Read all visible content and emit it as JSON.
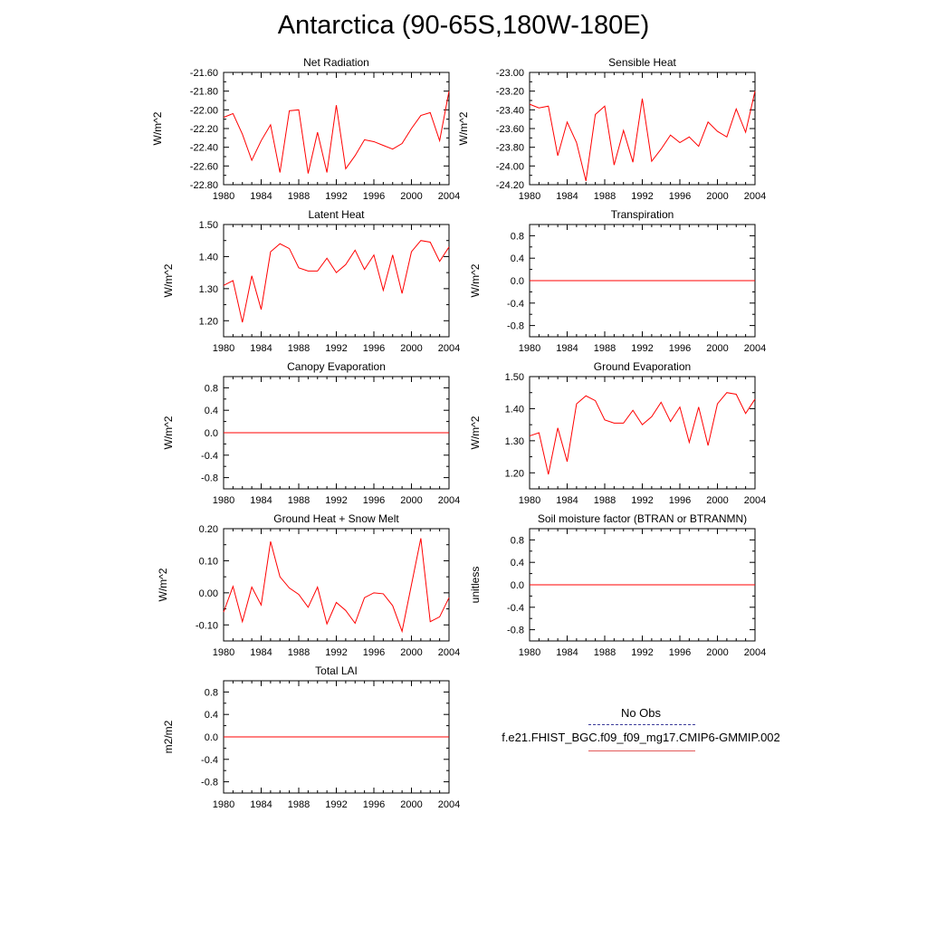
{
  "title": "Antarctica (90-65S,180W-180E)",
  "legend": {
    "obs_label": "No Obs",
    "case_label": "f.e21.FHIST_BGC.f09_f09_mg17.CMIP6-GMMIP.002",
    "obs_color": "#3b3b9a",
    "case_color": "#e35a5a"
  },
  "colors": {
    "series": "#ff0000",
    "axis": "#000000"
  },
  "chart_data": [
    {
      "type": "line",
      "title": "Net Radiation",
      "ylabel": "W/m^2",
      "xlim": [
        1980,
        2004
      ],
      "ylim": [
        -22.8,
        -21.6
      ],
      "x_ticks": [
        1980,
        1984,
        1988,
        1992,
        1996,
        2000,
        2004
      ],
      "y_ticks": [
        -21.6,
        -21.8,
        -22.0,
        -22.2,
        -22.4,
        -22.6,
        -22.8
      ],
      "y_tick_labels": [
        "-21.60",
        "-21.80",
        "-22.00",
        "-22.20",
        "-22.40",
        "-22.60",
        "-22.80"
      ],
      "x": [
        1980,
        1981,
        1982,
        1983,
        1984,
        1985,
        1986,
        1987,
        1988,
        1989,
        1990,
        1991,
        1992,
        1993,
        1994,
        1995,
        1996,
        1997,
        1998,
        1999,
        2000,
        2001,
        2002,
        2003,
        2004
      ],
      "values": [
        -22.08,
        -22.04,
        -22.26,
        -22.54,
        -22.33,
        -22.16,
        -22.67,
        -22.01,
        -22.0,
        -22.68,
        -22.24,
        -22.67,
        -21.95,
        -22.63,
        -22.49,
        -22.32,
        -22.34,
        -22.38,
        -22.42,
        -22.36,
        -22.2,
        -22.06,
        -22.03,
        -22.33,
        -21.8
      ]
    },
    {
      "type": "line",
      "title": "Sensible Heat",
      "ylabel": "W/m^2",
      "xlim": [
        1980,
        2004
      ],
      "ylim": [
        -24.2,
        -23.0
      ],
      "x_ticks": [
        1980,
        1984,
        1988,
        1992,
        1996,
        2000,
        2004
      ],
      "y_ticks": [
        -23.0,
        -23.2,
        -23.4,
        -23.6,
        -23.8,
        -24.0,
        -24.2
      ],
      "y_tick_labels": [
        "-23.00",
        "-23.20",
        "-23.40",
        "-23.60",
        "-23.80",
        "-24.00",
        "-24.20"
      ],
      "x": [
        1980,
        1981,
        1982,
        1983,
        1984,
        1985,
        1986,
        1987,
        1988,
        1989,
        1990,
        1991,
        1992,
        1993,
        1994,
        1995,
        1996,
        1997,
        1998,
        1999,
        2000,
        2001,
        2002,
        2003,
        2004
      ],
      "values": [
        -23.34,
        -23.38,
        -23.36,
        -23.89,
        -23.53,
        -23.75,
        -24.16,
        -23.45,
        -23.36,
        -23.99,
        -23.62,
        -23.96,
        -23.28,
        -23.95,
        -23.82,
        -23.67,
        -23.75,
        -23.69,
        -23.79,
        -23.53,
        -23.63,
        -23.69,
        -23.39,
        -23.64,
        -23.2
      ]
    },
    {
      "type": "line",
      "title": "Latent Heat",
      "ylabel": "W/m^2",
      "xlim": [
        1980,
        2004
      ],
      "ylim": [
        1.15,
        1.5
      ],
      "x_ticks": [
        1980,
        1984,
        1988,
        1992,
        1996,
        2000,
        2004
      ],
      "y_ticks": [
        1.5,
        1.4,
        1.3,
        1.2
      ],
      "y_tick_labels": [
        "1.50",
        "1.40",
        "1.30",
        "1.20"
      ],
      "x": [
        1980,
        1981,
        1982,
        1983,
        1984,
        1985,
        1986,
        1987,
        1988,
        1989,
        1990,
        1991,
        1992,
        1993,
        1994,
        1995,
        1996,
        1997,
        1998,
        1999,
        2000,
        2001,
        2002,
        2003,
        2004
      ],
      "values": [
        1.31,
        1.325,
        1.195,
        1.34,
        1.235,
        1.415,
        1.44,
        1.425,
        1.365,
        1.355,
        1.355,
        1.395,
        1.35,
        1.375,
        1.42,
        1.36,
        1.405,
        1.295,
        1.405,
        1.285,
        1.415,
        1.45,
        1.445,
        1.385,
        1.43
      ]
    },
    {
      "type": "line",
      "title": "Transpiration",
      "ylabel": "W/m^2",
      "xlim": [
        1980,
        2004
      ],
      "ylim": [
        -1.0,
        1.0
      ],
      "x_ticks": [
        1980,
        1984,
        1988,
        1992,
        1996,
        2000,
        2004
      ],
      "y_ticks": [
        0.8,
        0.4,
        0.0,
        -0.4,
        -0.8
      ],
      "y_tick_labels": [
        "0.8",
        "0.4",
        "0.0",
        "-0.4",
        "-0.8"
      ],
      "x": [
        1980,
        2004
      ],
      "values": [
        0,
        0
      ]
    },
    {
      "type": "line",
      "title": "Canopy Evaporation",
      "ylabel": "W/m^2",
      "xlim": [
        1980,
        2004
      ],
      "ylim": [
        -1.0,
        1.0
      ],
      "x_ticks": [
        1980,
        1984,
        1988,
        1992,
        1996,
        2000,
        2004
      ],
      "y_ticks": [
        0.8,
        0.4,
        0.0,
        -0.4,
        -0.8
      ],
      "y_tick_labels": [
        "0.8",
        "0.4",
        "0.0",
        "-0.4",
        "-0.8"
      ],
      "x": [
        1980,
        2004
      ],
      "values": [
        0,
        0
      ]
    },
    {
      "type": "line",
      "title": "Ground Evaporation",
      "ylabel": "W/m^2",
      "xlim": [
        1980,
        2004
      ],
      "ylim": [
        1.15,
        1.5
      ],
      "x_ticks": [
        1980,
        1984,
        1988,
        1992,
        1996,
        2000,
        2004
      ],
      "y_ticks": [
        1.5,
        1.4,
        1.3,
        1.2
      ],
      "y_tick_labels": [
        "1.50",
        "1.40",
        "1.30",
        "1.20"
      ],
      "x": [
        1980,
        1981,
        1982,
        1983,
        1984,
        1985,
        1986,
        1987,
        1988,
        1989,
        1990,
        1991,
        1992,
        1993,
        1994,
        1995,
        1996,
        1997,
        1998,
        1999,
        2000,
        2001,
        2002,
        2003,
        2004
      ],
      "values": [
        1.315,
        1.325,
        1.195,
        1.34,
        1.235,
        1.415,
        1.44,
        1.425,
        1.365,
        1.355,
        1.355,
        1.395,
        1.35,
        1.375,
        1.42,
        1.36,
        1.405,
        1.295,
        1.405,
        1.285,
        1.415,
        1.45,
        1.445,
        1.385,
        1.43
      ]
    },
    {
      "type": "line",
      "title": "Ground Heat + Snow Melt",
      "ylabel": "W/m^2",
      "xlim": [
        1980,
        2004
      ],
      "ylim": [
        -0.15,
        0.2
      ],
      "x_ticks": [
        1980,
        1984,
        1988,
        1992,
        1996,
        2000,
        2004
      ],
      "y_ticks": [
        0.2,
        0.1,
        0.0,
        -0.1
      ],
      "y_tick_labels": [
        "0.20",
        "0.10",
        "0.00",
        "-0.10"
      ],
      "x": [
        1980,
        1981,
        1982,
        1983,
        1984,
        1985,
        1986,
        1987,
        1988,
        1989,
        1990,
        1991,
        1992,
        1993,
        1994,
        1995,
        1996,
        1997,
        1998,
        1999,
        2000,
        2001,
        2002,
        2003,
        2004
      ],
      "values": [
        -0.06,
        0.02,
        -0.09,
        0.018,
        -0.038,
        0.16,
        0.05,
        0.015,
        -0.005,
        -0.045,
        0.018,
        -0.097,
        -0.03,
        -0.055,
        -0.095,
        -0.015,
        0.0,
        -0.003,
        -0.04,
        -0.12,
        0.025,
        0.17,
        -0.09,
        -0.075,
        -0.015
      ]
    },
    {
      "type": "line",
      "title": "Soil moisture factor (BTRAN or BTRANMN)",
      "ylabel": "unitless",
      "xlim": [
        1980,
        2004
      ],
      "ylim": [
        -1.0,
        1.0
      ],
      "x_ticks": [
        1980,
        1984,
        1988,
        1992,
        1996,
        2000,
        2004
      ],
      "y_ticks": [
        0.8,
        0.4,
        0.0,
        -0.4,
        -0.8
      ],
      "y_tick_labels": [
        "0.8",
        "0.4",
        "0.0",
        "-0.4",
        "-0.8"
      ],
      "x": [
        1980,
        2004
      ],
      "values": [
        0,
        0
      ]
    },
    {
      "type": "line",
      "title": "Total LAI",
      "ylabel": "m2/m2",
      "xlim": [
        1980,
        2004
      ],
      "ylim": [
        -1.0,
        1.0
      ],
      "x_ticks": [
        1980,
        1984,
        1988,
        1992,
        1996,
        2000,
        2004
      ],
      "y_ticks": [
        0.8,
        0.4,
        0.0,
        -0.4,
        -0.8
      ],
      "y_tick_labels": [
        "0.8",
        "0.4",
        "0.0",
        "-0.4",
        "-0.8"
      ],
      "x": [
        1980,
        2004
      ],
      "values": [
        0,
        0
      ]
    }
  ]
}
